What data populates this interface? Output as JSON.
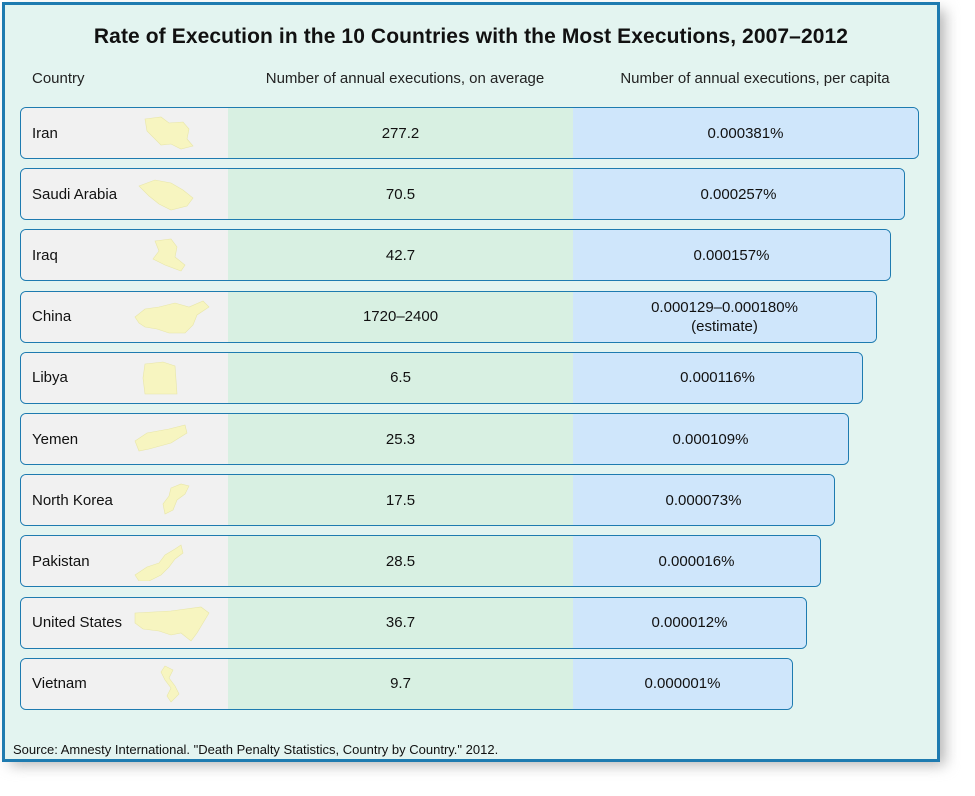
{
  "chart_data": {
    "type": "table",
    "title": "Rate of Execution in the 10 Countries with the Most Executions, 2007–2012",
    "columns": [
      "Country",
      "Number of annual executions, on average",
      "Number of annual executions, per capita"
    ],
    "rows": [
      {
        "country": "Iran",
        "avg": "277.2",
        "per_capita": "0.000381%",
        "per_capita_note": ""
      },
      {
        "country": "Saudi Arabia",
        "avg": "70.5",
        "per_capita": "0.000257%",
        "per_capita_note": ""
      },
      {
        "country": "Iraq",
        "avg": "42.7",
        "per_capita": "0.000157%",
        "per_capita_note": ""
      },
      {
        "country": "China",
        "avg": "1720–2400",
        "per_capita": "0.000129–0.000180%",
        "per_capita_note": "(estimate)"
      },
      {
        "country": "Libya",
        "avg": "6.5",
        "per_capita": "0.000116%",
        "per_capita_note": ""
      },
      {
        "country": "Yemen",
        "avg": "25.3",
        "per_capita": "0.000109%",
        "per_capita_note": ""
      },
      {
        "country": "North Korea",
        "avg": "17.5",
        "per_capita": "0.000073%",
        "per_capita_note": ""
      },
      {
        "country": "Pakistan",
        "avg": "28.5",
        "per_capita": "0.000016%",
        "per_capita_note": ""
      },
      {
        "country": "United States",
        "avg": "36.7",
        "per_capita": "0.000012%",
        "per_capita_note": ""
      },
      {
        "country": "Vietnam",
        "avg": "9.7",
        "per_capita": "0.000001%",
        "per_capita_note": ""
      }
    ],
    "source": "Source: Amnesty International. \"Death Penalty Statistics, Country by Country.\" 2012."
  },
  "colors": {
    "frame": "#1e7bb0",
    "background": "#e3f4f0",
    "country_cell": "#f1f1f1",
    "average_cell": "#d8f0e2",
    "per_capita_cell": "#cfe6fb",
    "map_fill": "#f7f5c0"
  },
  "icons": [
    "iran-map-icon",
    "saudi-arabia-map-icon",
    "iraq-map-icon",
    "china-map-icon",
    "libya-map-icon",
    "yemen-map-icon",
    "north-korea-map-icon",
    "pakistan-map-icon",
    "united-states-map-icon",
    "vietnam-map-icon"
  ]
}
